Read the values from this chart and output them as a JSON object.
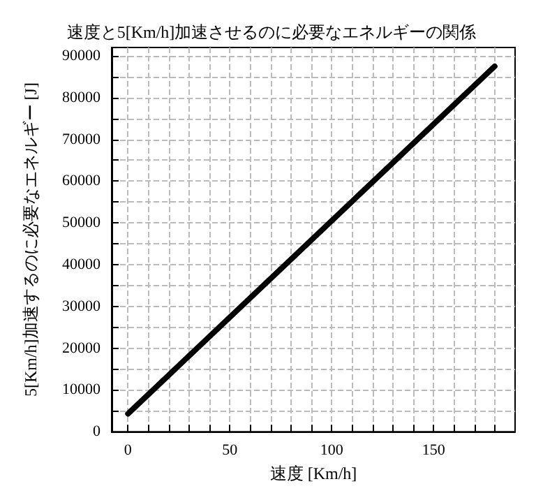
{
  "chart_data": {
    "type": "line",
    "title": "速度と5[Km/h]加速させるのに必要なエネルギーの関係",
    "xlabel": "速度 [Km/h]",
    "ylabel": "5[Km/h]加速するのに必要なエネルギー [J]",
    "x": [
      0,
      180
    ],
    "series": [
      {
        "color": "#000000",
        "values": [
          4300,
          87500
        ]
      }
    ],
    "xlim": [
      -8,
      190
    ],
    "xticks": [
      0,
      {
        "value": 10,
        "label": null
      },
      {
        "value": 20,
        "label": null
      },
      {
        "value": 30,
        "label": null
      },
      {
        "value": 40,
        "label": null
      },
      50,
      {
        "value": 60,
        "label": null
      },
      {
        "value": 70,
        "label": null
      },
      {
        "value": 80,
        "label": null
      },
      {
        "value": 90,
        "label": null
      },
      100,
      {
        "value": 110,
        "label": null
      },
      {
        "value": 120,
        "label": null
      },
      {
        "value": 130,
        "label": null
      },
      {
        "value": 140,
        "label": null
      },
      150,
      {
        "value": 160,
        "label": null
      },
      {
        "value": 170,
        "label": null
      },
      {
        "value": 180,
        "label": null
      }
    ],
    "ylim": [
      0,
      92000
    ],
    "yticks": [
      0,
      {
        "value": 5000,
        "label": null
      },
      10000,
      {
        "value": 15000,
        "label": null
      },
      20000,
      {
        "value": 25000,
        "label": null
      },
      30000,
      {
        "value": 35000,
        "label": null
      },
      40000,
      {
        "value": 45000,
        "label": null
      },
      50000,
      {
        "value": 55000,
        "label": null
      },
      60000,
      {
        "value": 65000,
        "label": null
      },
      70000,
      {
        "value": 75000,
        "label": null
      },
      80000,
      {
        "value": 85000,
        "label": null
      },
      90000
    ],
    "grid": true,
    "marker": "none",
    "line_style": "solid"
  }
}
